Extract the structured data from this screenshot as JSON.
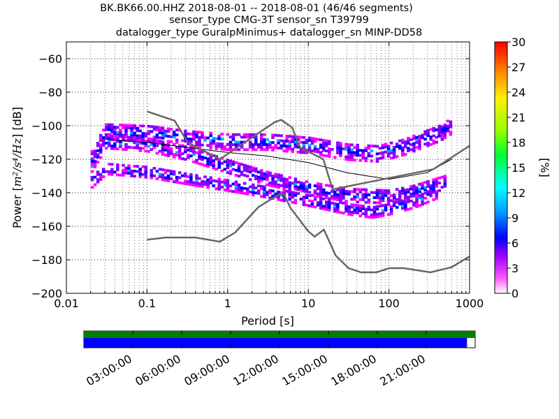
{
  "chart_data": {
    "type": "heatmap",
    "title_lines": [
      "BK.BK66.00.HHZ   2018-08-01 -- 2018-08-01  (46/46 segments)",
      "sensor_type CMG-3T sensor_sn T39799",
      "datalogger_type GuralpMinimus+ datalogger_sn MINP-DD58"
    ],
    "xlabel": "Period [s]",
    "ylabel_prefix": "Power [",
    "ylabel_math": "m²/s⁴/Hz",
    "ylabel_suffix": "] [dB]",
    "x_scale": "log",
    "xlim": [
      0.01,
      1000
    ],
    "ylim": [
      -200,
      -50
    ],
    "x_ticks": [
      0.01,
      0.1,
      1,
      10,
      100,
      1000
    ],
    "x_tick_labels": [
      "0.01",
      "0.1",
      "1",
      "10",
      "100",
      "1000"
    ],
    "y_ticks": [
      -200,
      -180,
      -160,
      -140,
      -120,
      -100,
      -80,
      -60
    ],
    "y_tick_labels": [
      "−200",
      "−180",
      "−160",
      "−140",
      "−120",
      "−100",
      "−80",
      "−60"
    ],
    "grid": true,
    "colorbar": {
      "label": "[%]",
      "min": 0,
      "max": 30,
      "ticks": [
        0,
        3,
        6,
        9,
        12,
        15,
        18,
        21,
        24,
        27,
        30
      ],
      "tick_labels": [
        "0",
        "3",
        "6",
        "9",
        "12",
        "15",
        "18",
        "21",
        "24",
        "27",
        "30"
      ],
      "colors": [
        "#ffffff",
        "#ff00ff",
        "#8800ff",
        "#0000ff",
        "#00aaff",
        "#00ffff",
        "#00ff44",
        "#88ff00",
        "#ffff00",
        "#ffaa00",
        "#ff4400",
        "#ff0000"
      ]
    },
    "psd_bands": [
      {
        "name": "upper-band",
        "points": [
          [
            0.02,
            -120
          ],
          [
            0.03,
            -104
          ],
          [
            0.1,
            -105
          ],
          [
            0.3,
            -108
          ],
          [
            1,
            -110
          ],
          [
            3,
            -110
          ],
          [
            10,
            -112
          ],
          [
            30,
            -116
          ],
          [
            70,
            -117
          ],
          [
            150,
            -113
          ],
          [
            400,
            -105
          ],
          [
            600,
            -100
          ]
        ],
        "width_db": 10
      },
      {
        "name": "middle-band",
        "points": [
          [
            0.02,
            -124
          ],
          [
            0.03,
            -110
          ],
          [
            0.1,
            -112
          ],
          [
            0.3,
            -117
          ],
          [
            1,
            -125
          ],
          [
            3,
            -132
          ],
          [
            10,
            -138
          ],
          [
            30,
            -142
          ],
          [
            100,
            -143
          ],
          [
            200,
            -140
          ],
          [
            500,
            -134
          ]
        ],
        "width_db": 8
      },
      {
        "name": "lower-band",
        "points": [
          [
            0.02,
            -134
          ],
          [
            0.03,
            -126
          ],
          [
            0.1,
            -128
          ],
          [
            0.3,
            -132
          ],
          [
            1,
            -136
          ],
          [
            3,
            -140
          ],
          [
            10,
            -145
          ],
          [
            30,
            -150
          ],
          [
            60,
            -152
          ],
          [
            100,
            -150
          ],
          [
            200,
            -146
          ],
          [
            400,
            -140
          ]
        ],
        "width_db": 7
      }
    ],
    "mode_line": {
      "name": "mode",
      "points": [
        [
          0.03,
          -108
        ],
        [
          0.1,
          -110
        ],
        [
          1,
          -116
        ],
        [
          3,
          -118
        ],
        [
          10,
          -122
        ],
        [
          30,
          -128
        ],
        [
          100,
          -132
        ],
        [
          300,
          -128
        ],
        [
          600,
          -120
        ]
      ]
    },
    "nhnm": {
      "name": "new-high-noise-model",
      "points": [
        [
          0.1,
          -91.5
        ],
        [
          0.22,
          -97
        ],
        [
          0.32,
          -110
        ],
        [
          0.8,
          -120
        ],
        [
          3.8,
          -98
        ],
        [
          4.6,
          -96.5
        ],
        [
          6.3,
          -101
        ],
        [
          7.9,
          -113
        ],
        [
          15.4,
          -120
        ],
        [
          20,
          -138
        ],
        [
          354,
          -126
        ],
        [
          1000,
          -112
        ]
      ]
    },
    "nlnm": {
      "name": "new-low-noise-model",
      "points": [
        [
          0.1,
          -168
        ],
        [
          0.17,
          -166.7
        ],
        [
          0.4,
          -166.7
        ],
        [
          0.8,
          -169.2
        ],
        [
          1.24,
          -163.7
        ],
        [
          2.4,
          -148.6
        ],
        [
          4.3,
          -141
        ],
        [
          5,
          -141
        ],
        [
          6,
          -149
        ],
        [
          10,
          -163
        ],
        [
          12,
          -166.2
        ],
        [
          15.6,
          -162
        ],
        [
          21.9,
          -177.5
        ],
        [
          31.6,
          -185
        ],
        [
          45,
          -187.5
        ],
        [
          70,
          -187.5
        ],
        [
          101,
          -185
        ],
        [
          154,
          -185
        ],
        [
          328,
          -187.5
        ],
        [
          600,
          -184.4
        ],
        [
          1000,
          -178
        ]
      ]
    },
    "timeline": {
      "tick_labels": [
        "03:00:00",
        "06:00:00",
        "09:00:00",
        "12:00:00",
        "15:00:00",
        "18:00:00",
        "21:00:00"
      ],
      "tick_hours": [
        3,
        6,
        9,
        12,
        15,
        18,
        21
      ],
      "range_hours": [
        0,
        24
      ],
      "data_availability_color": "#008000",
      "used_segments_color": "#0000ff",
      "used_segments_end_hour": 23.5
    }
  }
}
